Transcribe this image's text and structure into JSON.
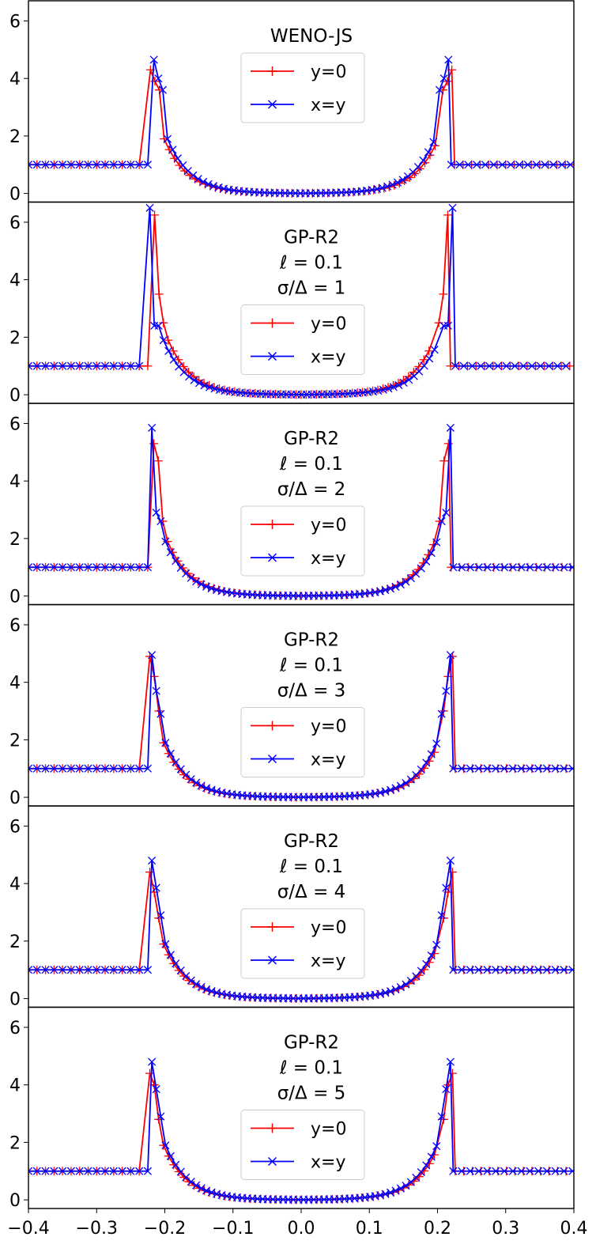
{
  "colors": {
    "y0_series": "#ff0000",
    "xy_series": "#0000ff",
    "frame": "#000000",
    "legend_border": "#cccccc"
  },
  "x_ticks": [
    "−0.4",
    "−0.3",
    "−0.2",
    "−0.1",
    "0.0",
    "0.1",
    "0.2",
    "0.3",
    "0.4"
  ],
  "chart_data": [
    {
      "type": "line",
      "id": "p1",
      "title_lines": [
        "WENO-JS"
      ],
      "xlim": [
        -0.4,
        0.4
      ],
      "ylim": [
        -0.3,
        6.7
      ],
      "y_ticks": [
        "0",
        "2",
        "4",
        "6"
      ],
      "legend_position": "upper center",
      "series": [
        {
          "name": "y=0",
          "marker": "plus",
          "shock_x": 0.221,
          "peak": 4.3,
          "post": 3.9,
          "dip": 3.6
        },
        {
          "name": "x=y",
          "marker": "x",
          "shock_x": 0.216,
          "peak": 4.65,
          "post": 4.0,
          "dip": 3.6
        }
      ]
    },
    {
      "type": "line",
      "id": "p2",
      "title_lines": [
        "GP-R2",
        "ℓ = 0.1",
        "σ/Δ = 1"
      ],
      "xlim": [
        -0.4,
        0.4
      ],
      "ylim": [
        -0.3,
        6.7
      ],
      "y_ticks": [
        "0",
        "2",
        "4",
        "6"
      ],
      "legend_position": "lower center",
      "series": [
        {
          "name": "y=0",
          "marker": "plus",
          "shock_x": 0.215,
          "peak": 6.25,
          "post": 3.5,
          "dip": 2.5
        },
        {
          "name": "x=y",
          "marker": "x",
          "shock_x": 0.222,
          "peak": 6.5,
          "post": 2.4,
          "dip": 2.4
        }
      ]
    },
    {
      "type": "line",
      "id": "p3",
      "title_lines": [
        "GP-R2",
        "ℓ = 0.1",
        "σ/Δ = 2"
      ],
      "xlim": [
        -0.4,
        0.4
      ],
      "ylim": [
        -0.3,
        6.7
      ],
      "y_ticks": [
        "0",
        "2",
        "4",
        "6"
      ],
      "legend_position": "lower center",
      "series": [
        {
          "name": "y=0",
          "marker": "plus",
          "shock_x": 0.216,
          "peak": 5.3,
          "post": 4.7,
          "dip": 2.6
        },
        {
          "name": "x=y",
          "marker": "x",
          "shock_x": 0.219,
          "peak": 5.85,
          "post": 2.9,
          "dip": 2.6
        }
      ]
    },
    {
      "type": "line",
      "id": "p4",
      "title_lines": [
        "GP-R2",
        "ℓ = 0.1",
        "σ/Δ = 3"
      ],
      "xlim": [
        -0.4,
        0.4
      ],
      "ylim": [
        -0.3,
        6.7
      ],
      "y_ticks": [
        "0",
        "2",
        "4",
        "6"
      ],
      "legend_position": "lower center",
      "series": [
        {
          "name": "y=0",
          "marker": "plus",
          "shock_x": 0.222,
          "peak": 4.9,
          "post": 4.2,
          "dip": 3.0
        },
        {
          "name": "x=y",
          "marker": "x",
          "shock_x": 0.219,
          "peak": 4.95,
          "post": 3.7,
          "dip": 2.9
        }
      ]
    },
    {
      "type": "line",
      "id": "p5",
      "title_lines": [
        "GP-R2",
        "ℓ = 0.1",
        "σ/Δ = 4"
      ],
      "xlim": [
        -0.4,
        0.4
      ],
      "ylim": [
        -0.3,
        6.7
      ],
      "y_ticks": [
        "0",
        "2",
        "4",
        "6"
      ],
      "legend_position": "lower center",
      "series": [
        {
          "name": "y=0",
          "marker": "plus",
          "shock_x": 0.222,
          "peak": 4.4,
          "post": 3.7,
          "dip": 2.8
        },
        {
          "name": "x=y",
          "marker": "x",
          "shock_x": 0.219,
          "peak": 4.8,
          "post": 3.85,
          "dip": 2.9
        }
      ]
    },
    {
      "type": "line",
      "id": "p6",
      "title_lines": [
        "GP-R2",
        "ℓ = 0.1",
        "σ/Δ = 5"
      ],
      "xlim": [
        -0.4,
        0.4
      ],
      "ylim": [
        -0.3,
        6.7
      ],
      "y_ticks": [
        "0",
        "2",
        "4",
        "6"
      ],
      "legend_position": "lower center",
      "series": [
        {
          "name": "y=0",
          "marker": "plus",
          "shock_x": 0.222,
          "peak": 4.4,
          "post": 4.0,
          "dip": 2.8
        },
        {
          "name": "x=y",
          "marker": "x",
          "shock_x": 0.219,
          "peak": 4.8,
          "post": 3.85,
          "dip": 2.9
        }
      ]
    }
  ]
}
